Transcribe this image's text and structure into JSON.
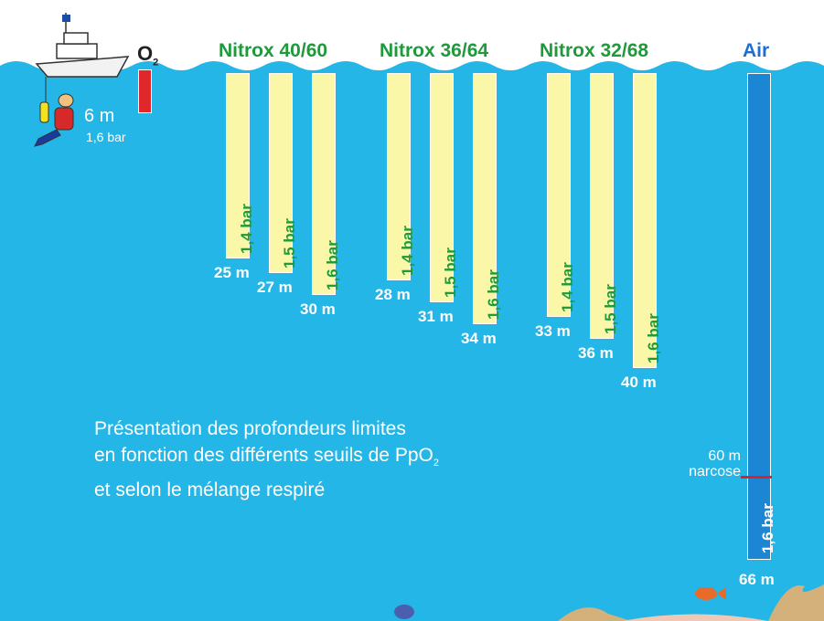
{
  "colors": {
    "sea": "#23b6e6",
    "nitrox_bar": "#fbf7a8",
    "nitrox_text": "#1f9a3a",
    "air_bar": "#1a86d4",
    "air_title": "#1f6fd0",
    "o2_bar": "#e0282a",
    "narcose_line": "#d6262a"
  },
  "oxygen": {
    "label": "O",
    "subscript": "2",
    "depth": "6 m",
    "pressure": "1,6 bar"
  },
  "mixes": [
    {
      "title": "Nitrox 40/60",
      "bars": [
        {
          "pressure": "1,4 bar",
          "depth": "25 m",
          "depth_m": 25
        },
        {
          "pressure": "1,5 bar",
          "depth": "27 m",
          "depth_m": 27
        },
        {
          "pressure": "1,6 bar",
          "depth": "30 m",
          "depth_m": 30
        }
      ]
    },
    {
      "title": "Nitrox 36/64",
      "bars": [
        {
          "pressure": "1,4 bar",
          "depth": "28 m",
          "depth_m": 28
        },
        {
          "pressure": "1,5 bar",
          "depth": "31 m",
          "depth_m": 31
        },
        {
          "pressure": "1,6 bar",
          "depth": "34 m",
          "depth_m": 34
        }
      ]
    },
    {
      "title": "Nitrox 32/68",
      "bars": [
        {
          "pressure": "1,4 bar",
          "depth": "33 m",
          "depth_m": 33
        },
        {
          "pressure": "1,5 bar",
          "depth": "36 m",
          "depth_m": 36
        },
        {
          "pressure": "1,6 bar",
          "depth": "40 m",
          "depth_m": 40
        }
      ]
    }
  ],
  "air": {
    "title": "Air",
    "pressure": "1,6 bar",
    "depth": "66 m",
    "narcose_depth": "60 m",
    "narcose_label": "narcose"
  },
  "caption": {
    "line1": "Présentation des profondeurs limites",
    "line2_prefix": "en fonction des différents seuils de PpO",
    "line2_sub": "2",
    "line3": "et selon le mélange respiré"
  }
}
